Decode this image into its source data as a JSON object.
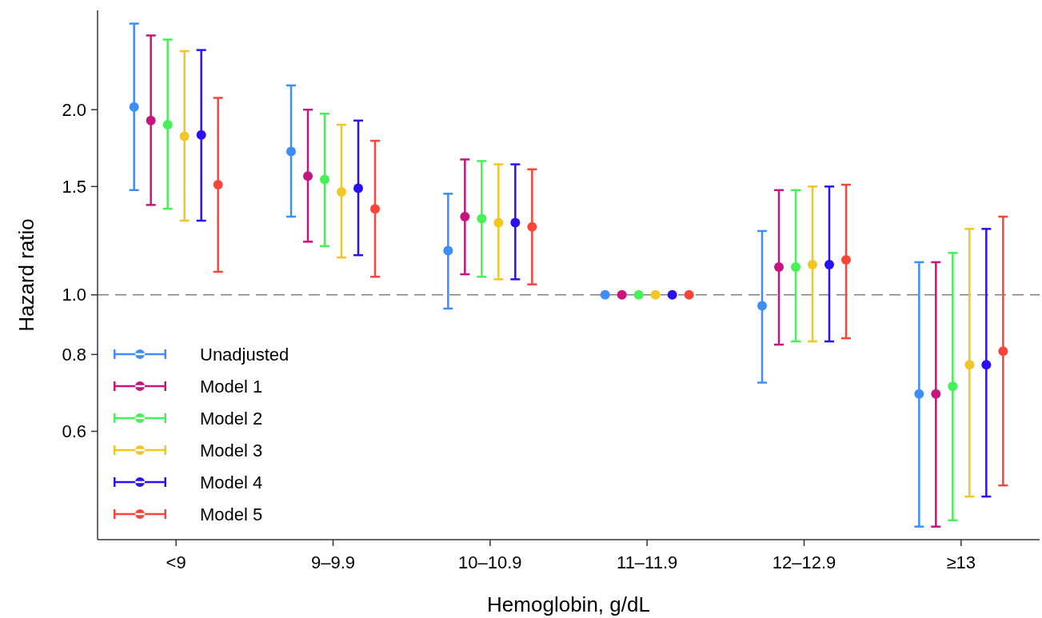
{
  "chart_data": {
    "type": "scatter",
    "xlabel": "Hemoglobin, g/dL",
    "ylabel": "Hazard ratio",
    "categories": [
      "<9",
      "9–9.9",
      "10–10.9",
      "11–11.9",
      "12–12.9",
      "≥13"
    ],
    "log": "y",
    "ylim": [
      0.4,
      2.9
    ],
    "yticks": [
      0.6,
      0.8,
      {
        "value": 1,
        "label": "1.0"
      },
      1.5,
      {
        "value": 2,
        "label": "2.0"
      }
    ],
    "grid": false,
    "legend": "bottom left",
    "marker": "circle",
    "ref_lines": [
      {
        "axis": "y",
        "value": 1,
        "color": "#808080",
        "line_style": "dashed"
      }
    ],
    "series": [
      {
        "name": "Unadjusted",
        "color": "#3d8ef8",
        "values": [
          2.02,
          1.71,
          1.18,
          1.0,
          0.96,
          0.69
        ],
        "errors": [
          [
            1.48,
            2.76
          ],
          [
            1.34,
            2.19
          ],
          [
            0.95,
            1.46
          ],
          null,
          [
            0.72,
            1.27
          ],
          [
            0.42,
            1.13
          ]
        ]
      },
      {
        "name": "Model 1",
        "color": "#c8147e",
        "values": [
          1.92,
          1.56,
          1.34,
          1.0,
          1.11,
          0.69
        ],
        "errors": [
          [
            1.4,
            2.64
          ],
          [
            1.22,
            2.0
          ],
          [
            1.08,
            1.66
          ],
          null,
          [
            0.83,
            1.48
          ],
          [
            0.42,
            1.13
          ]
        ]
      },
      {
        "name": "Model 2",
        "color": "#45f155",
        "values": [
          1.89,
          1.54,
          1.33,
          1.0,
          1.11,
          0.71
        ],
        "errors": [
          [
            1.38,
            2.6
          ],
          [
            1.2,
            1.97
          ],
          [
            1.07,
            1.65
          ],
          null,
          [
            0.84,
            1.48
          ],
          [
            0.43,
            1.17
          ]
        ]
      },
      {
        "name": "Model 3",
        "color": "#f2c623",
        "values": [
          1.81,
          1.47,
          1.31,
          1.0,
          1.12,
          0.77
        ],
        "errors": [
          [
            1.32,
            2.49
          ],
          [
            1.15,
            1.89
          ],
          [
            1.06,
            1.63
          ],
          null,
          [
            0.84,
            1.5
          ],
          [
            0.47,
            1.28
          ]
        ]
      },
      {
        "name": "Model 4",
        "color": "#2a10f5",
        "values": [
          1.82,
          1.49,
          1.31,
          1.0,
          1.12,
          0.77
        ],
        "errors": [
          [
            1.32,
            2.5
          ],
          [
            1.16,
            1.92
          ],
          [
            1.06,
            1.63
          ],
          null,
          [
            0.84,
            1.5
          ],
          [
            0.47,
            1.28
          ]
        ]
      },
      {
        "name": "Model 5",
        "color": "#fd4438",
        "values": [
          1.51,
          1.38,
          1.29,
          1.0,
          1.14,
          0.81
        ],
        "errors": [
          [
            1.09,
            2.09
          ],
          [
            1.07,
            1.78
          ],
          [
            1.04,
            1.6
          ],
          null,
          [
            0.85,
            1.51
          ],
          [
            0.49,
            1.34
          ]
        ]
      }
    ]
  }
}
